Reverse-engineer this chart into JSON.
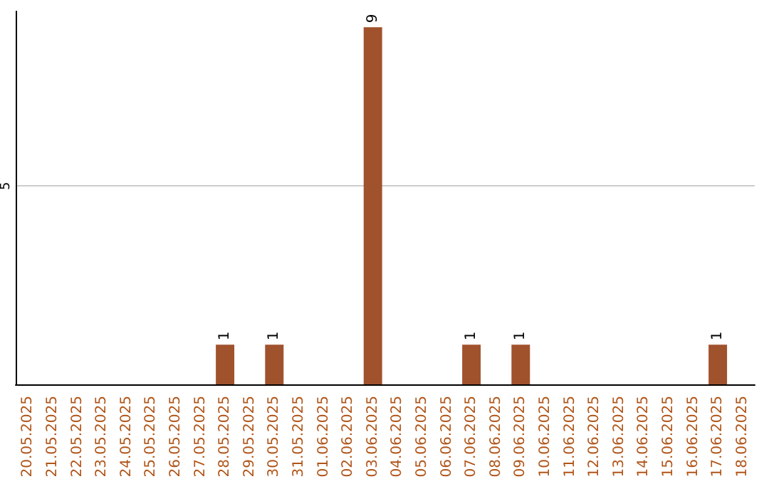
{
  "chart_data": {
    "type": "bar",
    "categories": [
      "20.05.2025",
      "21.05.2025",
      "22.05.2025",
      "23.05.2025",
      "24.05.2025",
      "25.05.2025",
      "26.05.2025",
      "27.05.2025",
      "28.05.2025",
      "29.05.2025",
      "30.05.2025",
      "31.05.2025",
      "01.06.2025",
      "02.06.2025",
      "03.06.2025",
      "04.06.2025",
      "05.06.2025",
      "06.06.2025",
      "07.06.2025",
      "08.06.2025",
      "09.06.2025",
      "10.06.2025",
      "11.06.2025",
      "12.06.2025",
      "13.06.2025",
      "14.06.2025",
      "15.06.2025",
      "16.06.2025",
      "17.06.2025",
      "18.06.2025"
    ],
    "values": [
      null,
      null,
      null,
      null,
      null,
      null,
      null,
      null,
      1,
      null,
      1,
      null,
      null,
      null,
      9,
      null,
      null,
      null,
      1,
      null,
      1,
      null,
      null,
      null,
      null,
      null,
      null,
      null,
      1,
      null
    ],
    "color": "#a0522d",
    "ylim": [
      0,
      9.4
    ],
    "yticks": [
      5
    ],
    "grid": "y",
    "data_labels": true
  }
}
